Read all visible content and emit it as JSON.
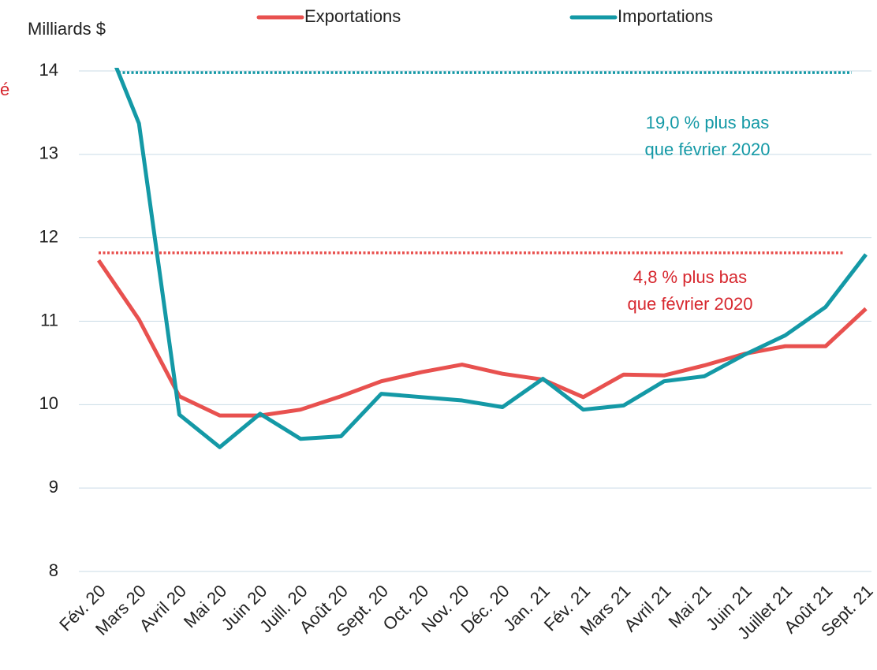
{
  "chart_data": {
    "type": "line",
    "y_axis_label": "Milliards $",
    "cropped_text": "é",
    "categories": [
      "Fév. 20",
      "Mars 20",
      "Avril 20",
      "Mai 20",
      "Juin 20",
      "Juill. 20",
      "Août 20",
      "Sept. 20",
      "Oct. 20",
      "Nov. 20",
      "Déc. 20",
      "Jan. 21",
      "Fév. 21",
      "Mars 21",
      "Avril 21",
      "Mai 21",
      "Juin 21",
      "Juillet 21",
      "Août 21",
      "Sept. 21"
    ],
    "series": [
      {
        "name": "Exportations",
        "color": "#e8514f",
        "values": [
          11.73,
          11.02,
          10.1,
          9.87,
          9.87,
          9.94,
          10.1,
          10.28,
          10.39,
          10.48,
          10.37,
          10.3,
          10.09,
          10.36,
          10.35,
          10.47,
          10.61,
          10.7,
          10.7,
          11.15
        ]
      },
      {
        "name": "Importations",
        "color": "#1499a6",
        "values": [
          14.57,
          13.37,
          9.88,
          9.49,
          9.89,
          9.59,
          9.62,
          10.13,
          10.09,
          10.05,
          9.97,
          10.31,
          9.94,
          9.99,
          10.28,
          10.34,
          10.6,
          10.83,
          11.17,
          11.8
        ]
      }
    ],
    "reference_lines": [
      {
        "value": 11.82,
        "color": "#e8514f"
      },
      {
        "value": 13.98,
        "color": "#1499a6"
      }
    ],
    "annotations": [
      {
        "text": [
          "19,0 % plus bas",
          "que février 2020"
        ],
        "color": "#1499a6"
      },
      {
        "text": [
          "4,8 % plus bas",
          "que février 2020"
        ],
        "color": "#d7282f"
      }
    ],
    "ylim": [
      8,
      14
    ],
    "yticks": [
      8,
      9,
      10,
      11,
      12,
      13,
      14
    ],
    "grid": true
  }
}
